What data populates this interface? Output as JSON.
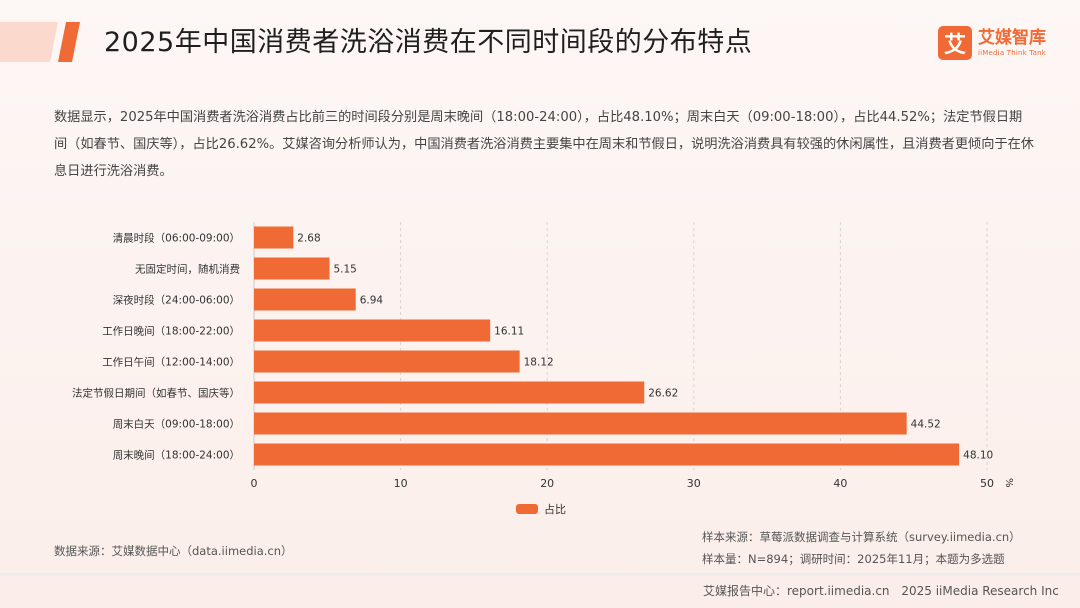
{
  "header": {
    "title": "2025年中国消费者洗浴消费在不同时间段的分布特点",
    "logo_mark": "艾",
    "logo_cn": "艾媒智库",
    "logo_en": "iiMedia Think Tank"
  },
  "summary": "数据显示，2025年中国消费者洗浴消费占比前三的时间段分别是周末晚间（18:00-24:00），占比48.10%；周末白天（09:00-18:00），占比44.52%；法定节假日期间（如春节、国庆等），占比26.62%。艾媒咨询分析师认为，中国消费者洗浴消费主要集中在周末和节假日，说明洗浴消费具有较强的休闲属性，且消费者更倾向于在休息日进行洗浴消费。",
  "chart_data": {
    "type": "bar",
    "orientation": "horizontal",
    "categories": [
      "清晨时段（06:00-09:00）",
      "无固定时间，随机消费",
      "深夜时段（24:00-06:00）",
      "工作日晚间（18:00-22:00）",
      "工作日午间（12:00-14:00）",
      "法定节假日期间（如春节、国庆等）",
      "周末白天（09:00-18:00）",
      "周末晚间（18:00-24:00）"
    ],
    "values": [
      2.68,
      5.15,
      6.94,
      16.11,
      18.12,
      26.62,
      44.52,
      48.1
    ],
    "value_labels": [
      "2.68",
      "5.15",
      "6.94",
      "16.11",
      "18.12",
      "26.62",
      "44.52",
      "48.10"
    ],
    "series_name": "占比",
    "unit": "%",
    "xlim": [
      0,
      50
    ],
    "xticks": [
      "0",
      "10",
      "20",
      "30",
      "40",
      "50"
    ],
    "grid": true,
    "legend_position": "bottom",
    "bar_color": "#f06a35"
  },
  "sources": {
    "left": "数据来源：艾媒数据中心（data.iimedia.cn）",
    "right_line1": "样本来源：草莓派数据调查与计算系统（survey.iimedia.cn）",
    "right_line2": "样本量：N=894；调研时间：2025年11月；本题为多选题"
  },
  "footer": {
    "report_center": "艾媒报告中心：report.iimedia.cn",
    "copyright": "2025 iiMedia Research Inc"
  }
}
